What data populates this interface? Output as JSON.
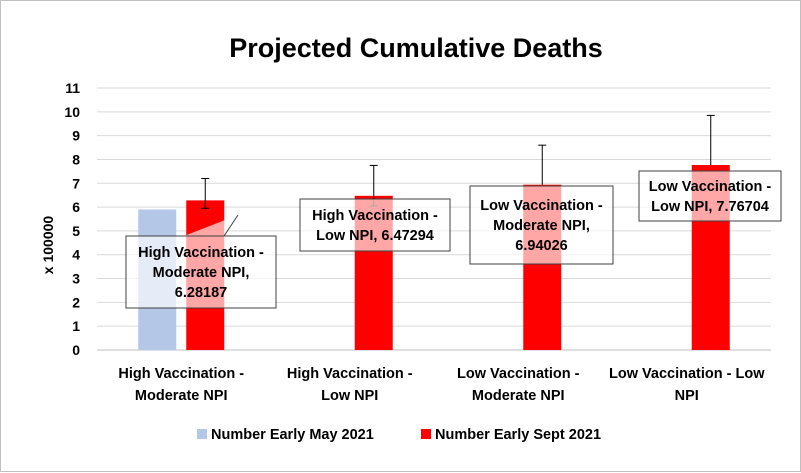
{
  "chart_data": {
    "type": "bar",
    "title": "Projected Cumulative Deaths",
    "xlabel": "",
    "ylabel": "x 100000",
    "ylim": [
      0,
      11
    ],
    "yticks": [
      0,
      1,
      2,
      3,
      4,
      5,
      6,
      7,
      8,
      9,
      10,
      11
    ],
    "grid": true,
    "legend_position": "bottom",
    "categories": [
      [
        "High Vaccination -",
        "Moderate NPI"
      ],
      [
        "High Vaccination -",
        "Low NPI"
      ],
      [
        "Low Vaccination -",
        "Moderate NPI"
      ],
      [
        "Low Vaccination - Low",
        "NPI"
      ]
    ],
    "series": [
      {
        "name": "Number Early May 2021",
        "color": "#b4c7e7",
        "values": [
          5.9,
          null,
          null,
          null
        ]
      },
      {
        "name": "Number Early Sept 2021",
        "color": "#ff0000",
        "values": [
          6.28187,
          6.47294,
          6.94026,
          7.76704
        ],
        "error_upper": [
          7.2,
          7.75,
          8.6,
          9.85
        ],
        "error_lower": [
          5.95,
          6.05,
          null,
          null
        ]
      }
    ],
    "data_labels": [
      [
        "High Vaccination -",
        "Moderate NPI,",
        "6.28187"
      ],
      [
        "High Vaccination -",
        "Low NPI, 6.47294"
      ],
      [
        "Low Vaccination -",
        "Moderate NPI,",
        "6.94026"
      ],
      [
        "Low Vaccination -",
        "Low NPI, 7.76704"
      ]
    ]
  }
}
